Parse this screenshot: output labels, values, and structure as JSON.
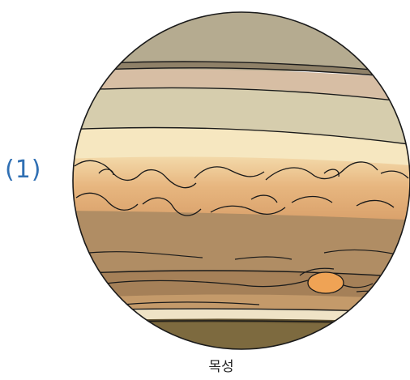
{
  "item_number": "(1)",
  "planet_label": "목성",
  "colors": {
    "outline": "#1a1a1a",
    "top_cap": "#b5ab90",
    "band_pink": "#d7bea4",
    "band_light": "#d6cdad",
    "band_cream": "#f6e7c0",
    "turbulent_orange": "#e2ad73",
    "band_brown": "#b08d64",
    "band_brown_dark": "#a58058",
    "belt_orange": "#c49a6a",
    "great_red_spot": "#efa355",
    "band_pale": "#efe3c6",
    "bottom_cap": "#7d6a3f",
    "number_blue": "#2f6fb3"
  }
}
